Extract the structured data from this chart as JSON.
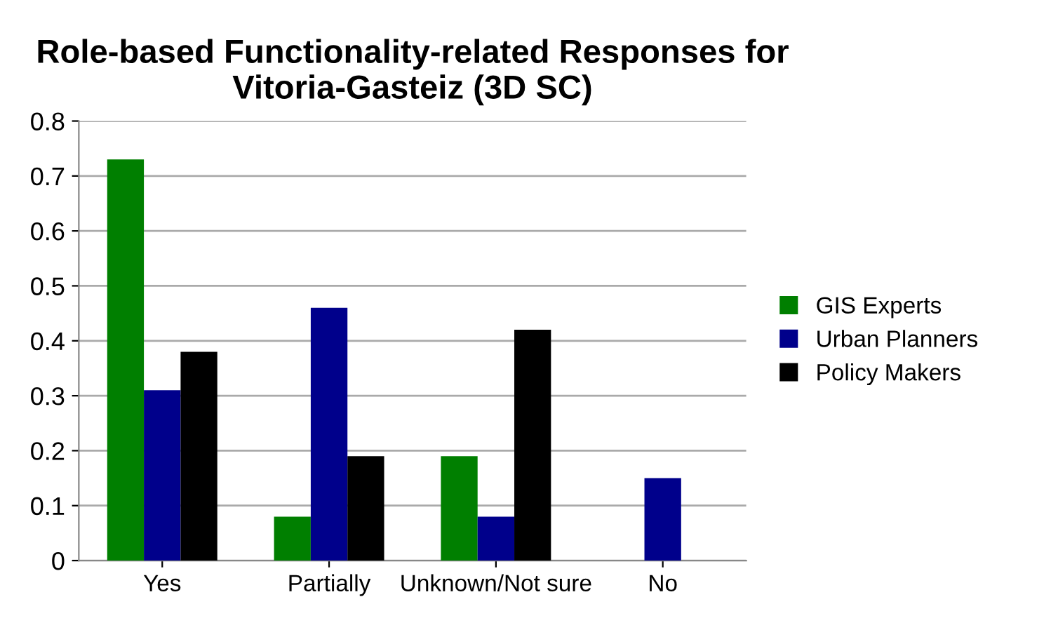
{
  "chart_data": {
    "type": "bar",
    "title": "Role-based Functionality-related Responses for Vitoria-Gasteiz (3D SC)",
    "categories": [
      "Yes",
      "Partially",
      "Unknown/Not sure",
      "No"
    ],
    "series": [
      {
        "name": "GIS Experts",
        "color": "#007f00",
        "values": [
          0.73,
          0.08,
          0.19,
          0
        ]
      },
      {
        "name": "Urban Planners",
        "color": "#00008b",
        "values": [
          0.31,
          0.46,
          0.08,
          0.15
        ]
      },
      {
        "name": "Policy Makers",
        "color": "#000000",
        "values": [
          0.38,
          0.19,
          0.42,
          0
        ]
      }
    ],
    "ylim": [
      0,
      0.8
    ],
    "yticks": [
      0,
      0.1,
      0.2,
      0.3,
      0.4,
      0.5,
      0.6,
      0.7,
      0.8
    ],
    "grid": "y",
    "legend": "right"
  }
}
